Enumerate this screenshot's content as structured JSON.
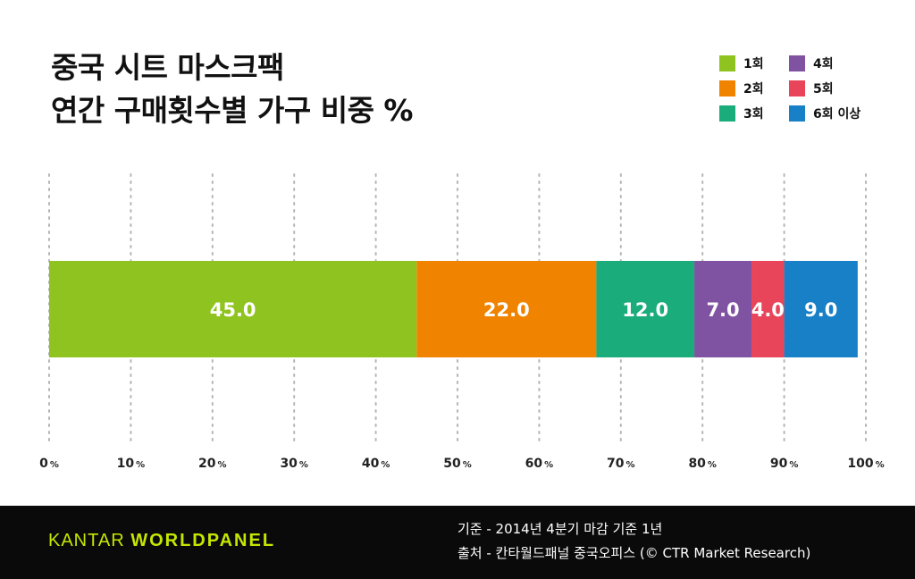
{
  "title_lines": [
    "중국 시트 마스크팩",
    "연간 구매횟수별 가구 비중 %"
  ],
  "colors": {
    "1": "#8fc31f",
    "2": "#f08300",
    "3": "#1aac7a",
    "4": "#7f52a2",
    "5": "#e8445a",
    "6": "#1780c6"
  },
  "chart_data": {
    "type": "bar",
    "orientation": "horizontal-stacked",
    "title": "중국 시트 마스크팩 연간 구매횟수별 가구 비중 %",
    "xlim": [
      0,
      100
    ],
    "x_ticks": [
      {
        "value": 0,
        "label": "0"
      },
      {
        "value": 10,
        "label": "10"
      },
      {
        "value": 20,
        "label": "20"
      },
      {
        "value": 30,
        "label": "30"
      },
      {
        "value": 40,
        "label": "40"
      },
      {
        "value": 50,
        "label": "50"
      },
      {
        "value": 60,
        "label": "60"
      },
      {
        "value": 70,
        "label": "70"
      },
      {
        "value": 80,
        "label": "80"
      },
      {
        "value": 90,
        "label": "90"
      },
      {
        "value": 100,
        "label": "100"
      }
    ],
    "tick_unit": "%",
    "grid": "vertical dotted",
    "legend_position": "top-right",
    "series": [
      {
        "name": "1회",
        "value": 45.0,
        "label": "45.0",
        "color": "#8fc31f"
      },
      {
        "name": "2회",
        "value": 22.0,
        "label": "22.0",
        "color": "#f08300"
      },
      {
        "name": "3회",
        "value": 12.0,
        "label": "12.0",
        "color": "#1aac7a"
      },
      {
        "name": "4회",
        "value": 7.0,
        "label": "7.0",
        "color": "#7f52a2"
      },
      {
        "name": "5회",
        "value": 4.0,
        "label": "4.0",
        "color": "#e8445a"
      },
      {
        "name": "6회 이상",
        "value": 9.0,
        "label": "9.0",
        "color": "#1780c6"
      }
    ]
  },
  "footer": {
    "brand_part1": "KANTAR ",
    "brand_part2": "WORLDPANEL",
    "note1": "기준 - 2014년 4분기 마감 기준 1년",
    "note2": "출처 - 칸타월드패널 중국오피스 (© CTR Market Research)"
  }
}
